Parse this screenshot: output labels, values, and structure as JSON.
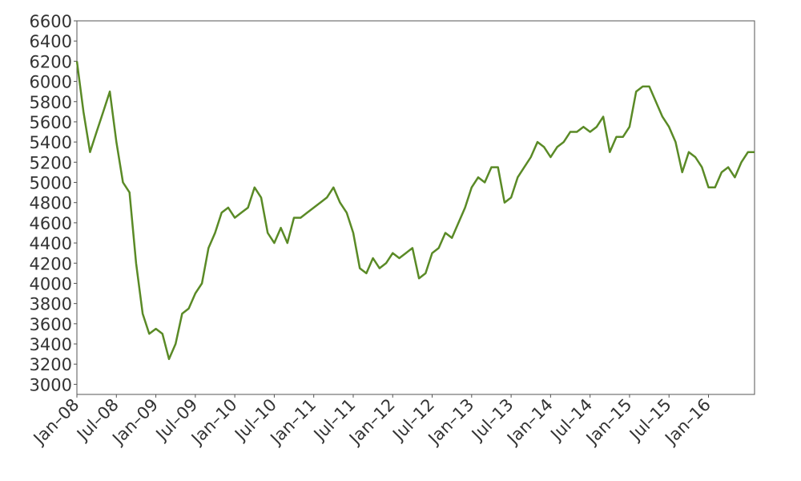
{
  "chart_data": {
    "type": "line",
    "x": [
      "2008-01",
      "2008-02",
      "2008-03",
      "2008-04",
      "2008-05",
      "2008-06",
      "2008-07",
      "2008-08",
      "2008-09",
      "2008-10",
      "2008-11",
      "2008-12",
      "2009-01",
      "2009-02",
      "2009-03",
      "2009-04",
      "2009-05",
      "2009-06",
      "2009-07",
      "2009-08",
      "2009-09",
      "2009-10",
      "2009-11",
      "2009-12",
      "2010-01",
      "2010-02",
      "2010-03",
      "2010-04",
      "2010-05",
      "2010-06",
      "2010-07",
      "2010-08",
      "2010-09",
      "2010-10",
      "2010-11",
      "2010-12",
      "2011-01",
      "2011-02",
      "2011-03",
      "2011-04",
      "2011-05",
      "2011-06",
      "2011-07",
      "2011-08",
      "2011-09",
      "2011-10",
      "2011-11",
      "2011-12",
      "2012-01",
      "2012-02",
      "2012-03",
      "2012-04",
      "2012-05",
      "2012-06",
      "2012-07",
      "2012-08",
      "2012-09",
      "2012-10",
      "2012-11",
      "2012-12",
      "2013-01",
      "2013-02",
      "2013-03",
      "2013-04",
      "2013-05",
      "2013-06",
      "2013-07",
      "2013-08",
      "2013-09",
      "2013-10",
      "2013-11",
      "2013-12",
      "2014-01",
      "2014-02",
      "2014-03",
      "2014-04",
      "2014-05",
      "2014-06",
      "2014-07",
      "2014-08",
      "2014-09",
      "2014-10",
      "2014-11",
      "2014-12",
      "2015-01",
      "2015-02",
      "2015-03",
      "2015-04",
      "2015-05",
      "2015-06",
      "2015-07",
      "2015-08",
      "2015-09",
      "2015-10",
      "2015-11",
      "2015-12",
      "2016-01",
      "2016-02",
      "2016-03",
      "2016-04",
      "2016-05",
      "2016-06",
      "2016-07",
      "2016-08"
    ],
    "series": [
      {
        "color": "#5a8a26",
        "values": [
          6200,
          5700,
          5300,
          5500,
          5700,
          5900,
          5400,
          5000,
          4900,
          4200,
          3700,
          3500,
          3550,
          3500,
          3250,
          3400,
          3700,
          3750,
          3900,
          4000,
          4350,
          4500,
          4700,
          4750,
          4650,
          4700,
          4750,
          4950,
          4850,
          4500,
          4400,
          4550,
          4400,
          4650,
          4650,
          4700,
          4750,
          4800,
          4850,
          4950,
          4800,
          4700,
          4500,
          4150,
          4100,
          4250,
          4150,
          4200,
          4300,
          4250,
          4300,
          4350,
          4050,
          4100,
          4300,
          4350,
          4500,
          4450,
          4600,
          4750,
          4950,
          5050,
          5000,
          5150,
          5150,
          4800,
          4850,
          5050,
          5150,
          5250,
          5400,
          5350,
          5250,
          5350,
          5400,
          5500,
          5500,
          5550,
          5500,
          5550,
          5650,
          5300,
          5450,
          5450,
          5550,
          5900,
          5950,
          5950,
          5800,
          5650,
          5550,
          5400,
          5100,
          5300,
          5250,
          5150,
          4950,
          4950,
          5100,
          5150,
          5050,
          5200,
          5300,
          5300
        ]
      }
    ],
    "xlim": [
      "2008-01",
      "2016-08"
    ],
    "xticks": [
      {
        "value": "2008-01",
        "label": "Jan–08"
      },
      {
        "value": "2008-07",
        "label": "Jul–08"
      },
      {
        "value": "2009-01",
        "label": "Jan–09"
      },
      {
        "value": "2009-07",
        "label": "Jul–09"
      },
      {
        "value": "2010-01",
        "label": "Jan–10"
      },
      {
        "value": "2010-07",
        "label": "Jul–10"
      },
      {
        "value": "2011-01",
        "label": "Jan–11"
      },
      {
        "value": "2011-07",
        "label": "Jul–11"
      },
      {
        "value": "2012-01",
        "label": "Jan–12"
      },
      {
        "value": "2012-07",
        "label": "Jul–12"
      },
      {
        "value": "2013-01",
        "label": "Jan–13"
      },
      {
        "value": "2013-07",
        "label": "Jul–13"
      },
      {
        "value": "2014-01",
        "label": "Jan–14"
      },
      {
        "value": "2014-07",
        "label": "Jul–14"
      },
      {
        "value": "2015-01",
        "label": "Jan–15"
      },
      {
        "value": "2015-07",
        "label": "Jul–15"
      },
      {
        "value": "2016-01",
        "label": "Jan–16"
      }
    ],
    "ylim": [
      2900,
      6600
    ],
    "yticks": [
      3000,
      3200,
      3400,
      3600,
      3800,
      4000,
      4200,
      4400,
      4600,
      4800,
      5000,
      5200,
      5400,
      5600,
      5800,
      6000,
      6200,
      6400,
      6600
    ]
  }
}
